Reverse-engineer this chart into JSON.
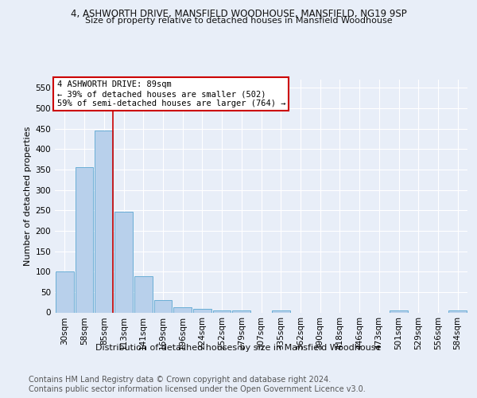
{
  "title_line1": "4, ASHWORTH DRIVE, MANSFIELD WOODHOUSE, MANSFIELD, NG19 9SP",
  "title_line2": "Size of property relative to detached houses in Mansfield Woodhouse",
  "xlabel": "Distribution of detached houses by size in Mansfield Woodhouse",
  "ylabel": "Number of detached properties",
  "footer_line1": "Contains HM Land Registry data © Crown copyright and database right 2024.",
  "footer_line2": "Contains public sector information licensed under the Open Government Licence v3.0.",
  "annotation_line1": "4 ASHWORTH DRIVE: 89sqm",
  "annotation_line2": "← 39% of detached houses are smaller (502)",
  "annotation_line3": "59% of semi-detached houses are larger (764) →",
  "bar_values": [
    101,
    355,
    446,
    246,
    88,
    30,
    13,
    9,
    5,
    5,
    0,
    5,
    0,
    0,
    0,
    0,
    0,
    5,
    0,
    0,
    5
  ],
  "bar_labels": [
    "30sqm",
    "58sqm",
    "85sqm",
    "113sqm",
    "141sqm",
    "169sqm",
    "196sqm",
    "224sqm",
    "252sqm",
    "279sqm",
    "307sqm",
    "335sqm",
    "362sqm",
    "390sqm",
    "418sqm",
    "446sqm",
    "473sqm",
    "501sqm",
    "529sqm",
    "556sqm",
    "584sqm"
  ],
  "bar_color": "#b8d0eb",
  "bar_edge_color": "#6aaed6",
  "redline_index": 2,
  "ylim": [
    0,
    570
  ],
  "yticks": [
    0,
    50,
    100,
    150,
    200,
    250,
    300,
    350,
    400,
    450,
    500,
    550
  ],
  "bg_color": "#e8eef8",
  "plot_bg_color": "#e8eef8",
  "grid_color": "#ffffff",
  "annotation_box_color": "#ffffff",
  "annotation_box_edge": "#cc0000",
  "title_fontsize": 8.5,
  "subtitle_fontsize": 8.0,
  "axis_label_fontsize": 8.0,
  "tick_fontsize": 7.5,
  "annotation_fontsize": 7.5,
  "footer_fontsize": 7.0,
  "xlabel_fontsize": 8.0
}
